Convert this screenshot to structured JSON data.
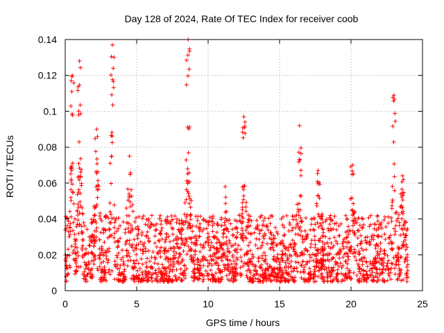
{
  "chart_data": {
    "type": "scatter",
    "title": "Day 128 of 2024, Rate Of TEC Index for receiver coob",
    "xlabel": "GPS time / hours",
    "ylabel": "ROTI / TECUs",
    "xlim": [
      0,
      25
    ],
    "ylim": [
      0,
      0.14
    ],
    "x_ticks": [
      0,
      5,
      10,
      15,
      20,
      25
    ],
    "x_tick_labels": [
      "0",
      "5",
      "10",
      "15",
      "20",
      "25"
    ],
    "y_ticks": [
      0,
      0.02,
      0.04,
      0.06,
      0.08,
      0.1,
      0.12,
      0.14
    ],
    "y_tick_labels": [
      "0",
      "0.02",
      "0.04",
      "0.06",
      "0.08",
      "0.1",
      "0.12",
      "0.14"
    ],
    "grid": true,
    "marker": "plus",
    "color": "#ff0000",
    "series": [
      {
        "name": "ROTI",
        "data_range_hours": [
          0,
          24
        ],
        "typical_band": [
          0.005,
          0.03
        ],
        "peaks": [
          {
            "x": 0.5,
            "y": 0.12
          },
          {
            "x": 1.0,
            "y": 0.128
          },
          {
            "x": 2.2,
            "y": 0.09
          },
          {
            "x": 3.3,
            "y": 0.137
          },
          {
            "x": 4.5,
            "y": 0.075
          },
          {
            "x": 8.6,
            "y": 0.14
          },
          {
            "x": 11.2,
            "y": 0.058
          },
          {
            "x": 12.5,
            "y": 0.097
          },
          {
            "x": 16.4,
            "y": 0.092
          },
          {
            "x": 17.7,
            "y": 0.067
          },
          {
            "x": 20.1,
            "y": 0.07
          },
          {
            "x": 23.0,
            "y": 0.109
          },
          {
            "x": 23.6,
            "y": 0.064
          }
        ]
      }
    ]
  }
}
